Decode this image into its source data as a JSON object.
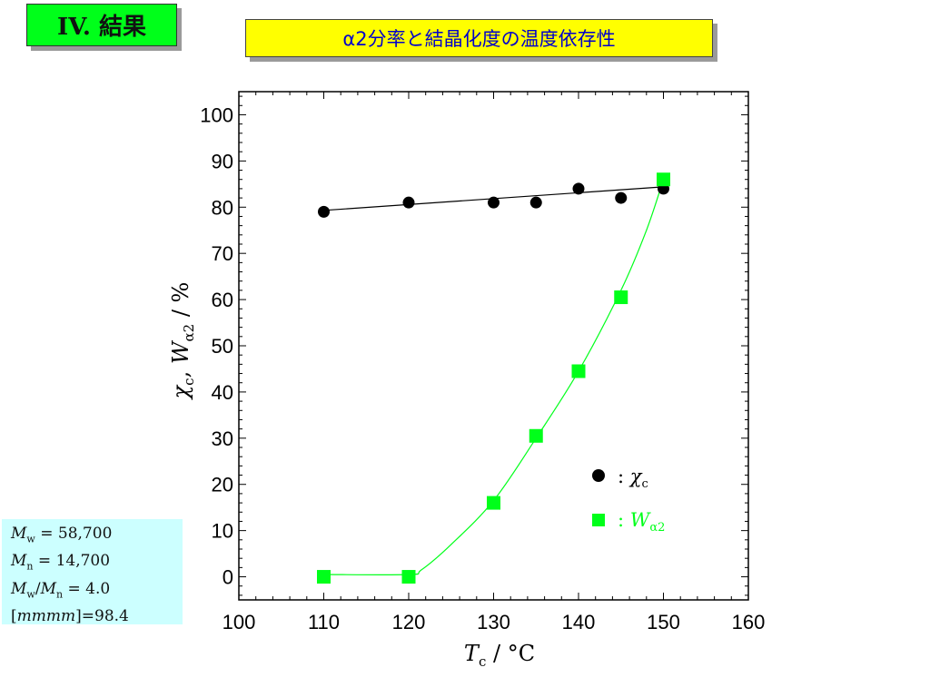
{
  "slide": {
    "section_label": "IV. 結果",
    "title": "α2分率と結晶化度の温度依存性"
  },
  "info_box": {
    "mw_symbol": "M",
    "mw_sub": "w",
    "mw_value": " = 58,700",
    "mn_symbol": "M",
    "mn_sub": "n",
    "mn_value": " = 14,700",
    "ratio_num_symbol": "M",
    "ratio_num_sub": "w",
    "ratio_slash": "/",
    "ratio_den_symbol": "M",
    "ratio_den_sub": "n",
    "ratio_value": " = 4.0",
    "tacticity_open": "[",
    "tacticity_symbol": "mmmm",
    "tacticity_value": "]=98.4"
  },
  "colors": {
    "section_bg": "#00ff1a",
    "title_bg": "#ffff00",
    "title_text": "#0000cc",
    "info_bg": "#ccffff",
    "series_chi": "#000000",
    "series_w": "#00ff1a"
  },
  "chart_data": {
    "type": "scatter",
    "xlabel_main": "T",
    "xlabel_sub": "c",
    "xlabel_unit": " / °C",
    "ylabel_chi": "χ",
    "ylabel_chi_sub": "c",
    "ylabel_sep": ", ",
    "ylabel_w": "W",
    "ylabel_w_sub": "α2",
    "ylabel_unit": " / %",
    "xlim": [
      100,
      160
    ],
    "ylim": [
      -5,
      105
    ],
    "xticks": [
      100,
      110,
      120,
      130,
      140,
      150,
      160
    ],
    "yticks": [
      0,
      10,
      20,
      30,
      40,
      50,
      60,
      70,
      80,
      90,
      100
    ],
    "series": [
      {
        "name": "χc",
        "legend_prefix": ": ",
        "legend_main": "χ",
        "legend_sub": "c",
        "marker": "circle",
        "color": "#000000",
        "x": [
          110,
          120,
          130,
          135,
          140,
          145,
          150
        ],
        "y": [
          79,
          81,
          81,
          81,
          84,
          82,
          84
        ],
        "fit": {
          "type": "linear",
          "x": [
            110,
            150
          ],
          "y": [
            79.3,
            84.4
          ]
        }
      },
      {
        "name": "Wα2",
        "legend_prefix": ": ",
        "legend_main": "W",
        "legend_sub": "α2",
        "marker": "square",
        "color": "#00ff1a",
        "x": [
          110,
          120,
          130,
          135,
          140,
          145,
          150
        ],
        "y": [
          0,
          0,
          16,
          30.5,
          44.5,
          60.5,
          86
        ],
        "fit": {
          "type": "smooth",
          "x": [
            110,
            120,
            121.5,
            125,
            130,
            135,
            140,
            145,
            148,
            150
          ],
          "y": [
            0.5,
            0.5,
            1.5,
            7,
            16.5,
            30,
            44.5,
            62,
            75,
            86
          ]
        }
      }
    ],
    "legend_position": "lower-right",
    "grid": false
  }
}
